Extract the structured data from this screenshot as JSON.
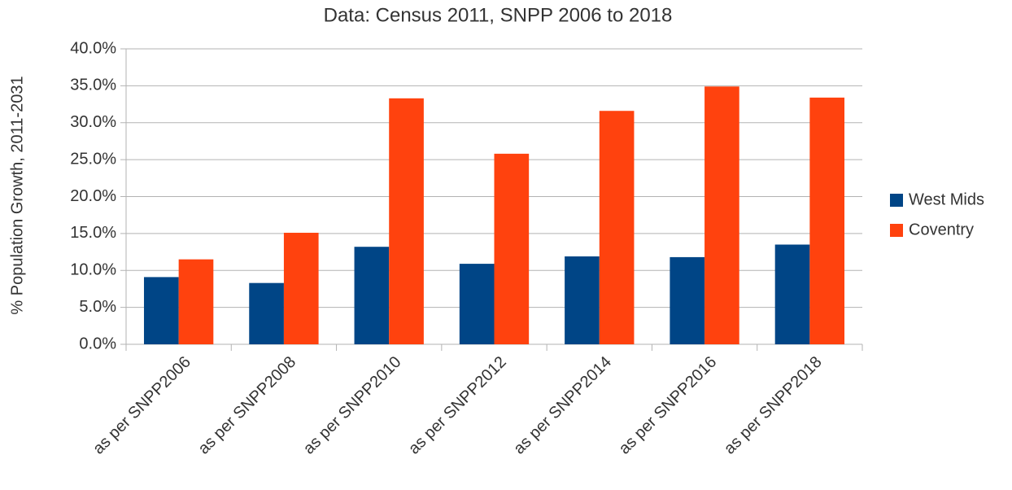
{
  "chart_data": {
    "type": "bar",
    "title": "Data: Census 2011, SNPP 2006 to 2018",
    "y_label": "% Population Growth, 2011-2031",
    "categories": [
      "as per SNPP2006",
      "as per SNPP2008",
      "as per SNPP2010",
      "as per SNPP2012",
      "as per SNPP2014",
      "as per SNPP2016",
      "as per SNPP2018"
    ],
    "series": [
      {
        "name": "West Mids",
        "color": "#004586",
        "values": [
          9.1,
          8.3,
          13.2,
          10.9,
          11.9,
          11.8,
          13.5
        ]
      },
      {
        "name": "Coventry",
        "color": "#ff420e",
        "values": [
          11.5,
          15.1,
          33.3,
          25.8,
          31.6,
          34.9,
          33.4
        ]
      }
    ],
    "ylim": [
      0,
      40
    ],
    "yticks": [
      {
        "value": 0,
        "label": "0.0%"
      },
      {
        "value": 5,
        "label": "5.0%"
      },
      {
        "value": 10,
        "label": "10.0%"
      },
      {
        "value": 15,
        "label": "15.0%"
      },
      {
        "value": 20,
        "label": "20.0%"
      },
      {
        "value": 25,
        "label": "25.0%"
      },
      {
        "value": 30,
        "label": "30.0%"
      },
      {
        "value": 35,
        "label": "35.0%"
      },
      {
        "value": 40,
        "label": "40.0%"
      }
    ],
    "grid": true,
    "legend": "right"
  }
}
